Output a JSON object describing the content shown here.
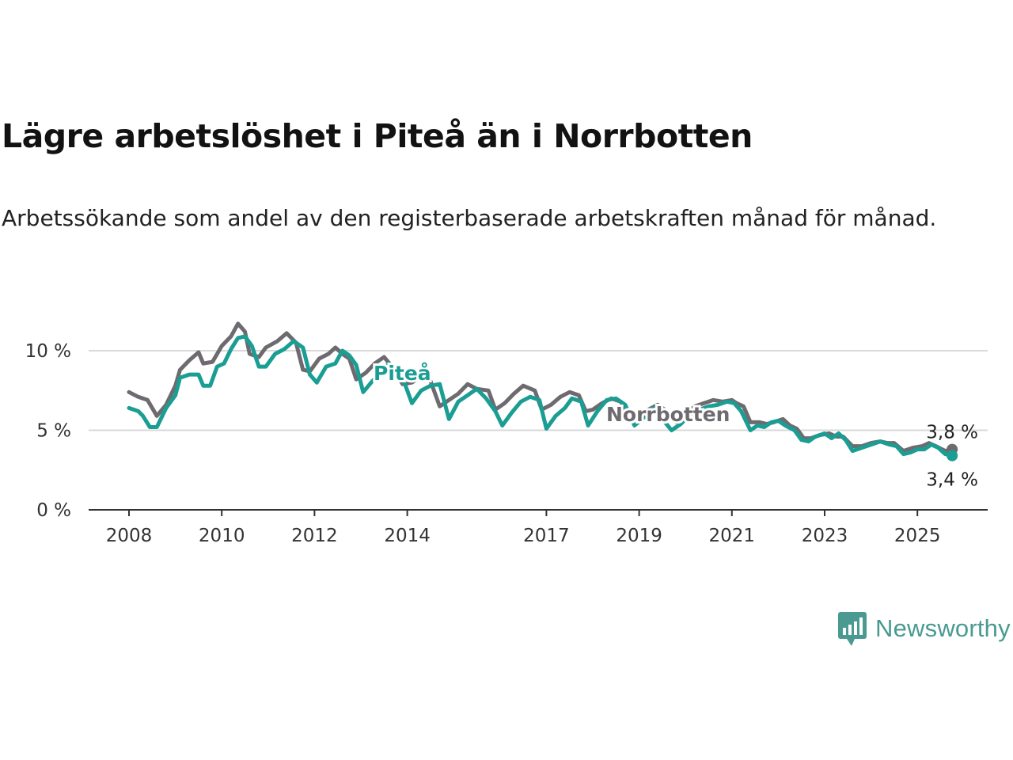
{
  "title": "Lägre arbetslöshet i Piteå än i Norrbotten",
  "subtitle": "Arbetssökande som andel av den registerbaserade arbetskraften månad för månad.",
  "brand": {
    "name": "Newsworthy",
    "icon": "newsworthy-chart-bubble-icon",
    "color": "#4a9a92"
  },
  "chart_data": {
    "type": "line",
    "x_unit": "year (decimal, monthly series)",
    "ylim": [
      0,
      12
    ],
    "xlim": [
      2007.65,
      2026.5
    ],
    "y_ticks": [
      0,
      5,
      10
    ],
    "y_tick_labels": [
      "0 %",
      "5 %",
      "10 %"
    ],
    "x_ticks": [
      2008,
      2010,
      2012,
      2014,
      2017,
      2019,
      2021,
      2023,
      2025
    ],
    "x_tick_labels": [
      "2008",
      "2010",
      "2012",
      "2014",
      "2017",
      "2019",
      "2021",
      "2023",
      "2025"
    ],
    "grid": true,
    "series": [
      {
        "name": "Norrbotten",
        "color": "#6e6b70",
        "end_label": "3,8 %",
        "points": [
          [
            2008.0,
            7.4
          ],
          [
            2008.2,
            7.1
          ],
          [
            2008.4,
            6.9
          ],
          [
            2008.6,
            5.9
          ],
          [
            2008.8,
            6.6
          ],
          [
            2009.0,
            7.8
          ],
          [
            2009.1,
            8.8
          ],
          [
            2009.3,
            9.4
          ],
          [
            2009.5,
            9.9
          ],
          [
            2009.6,
            9.2
          ],
          [
            2009.8,
            9.3
          ],
          [
            2010.0,
            10.3
          ],
          [
            2010.2,
            10.9
          ],
          [
            2010.35,
            11.7
          ],
          [
            2010.5,
            11.2
          ],
          [
            2010.6,
            9.8
          ],
          [
            2010.8,
            9.6
          ],
          [
            2010.95,
            10.2
          ],
          [
            2011.2,
            10.6
          ],
          [
            2011.4,
            11.1
          ],
          [
            2011.6,
            10.5
          ],
          [
            2011.75,
            8.8
          ],
          [
            2011.9,
            8.7
          ],
          [
            2012.1,
            9.5
          ],
          [
            2012.3,
            9.8
          ],
          [
            2012.45,
            10.2
          ],
          [
            2012.6,
            9.8
          ],
          [
            2012.75,
            9.5
          ],
          [
            2012.9,
            8.2
          ],
          [
            2013.1,
            8.6
          ],
          [
            2013.3,
            9.2
          ],
          [
            2013.5,
            9.6
          ],
          [
            2013.7,
            8.9
          ],
          [
            2013.9,
            7.9
          ],
          [
            2014.1,
            8.0
          ],
          [
            2014.3,
            8.4
          ],
          [
            2014.5,
            8.1
          ],
          [
            2014.7,
            6.5
          ],
          [
            2014.9,
            6.9
          ],
          [
            2015.1,
            7.3
          ],
          [
            2015.3,
            7.9
          ],
          [
            2015.5,
            7.6
          ],
          [
            2015.75,
            7.5
          ],
          [
            2015.9,
            6.3
          ],
          [
            2016.1,
            6.7
          ],
          [
            2016.3,
            7.3
          ],
          [
            2016.5,
            7.8
          ],
          [
            2016.75,
            7.5
          ],
          [
            2016.9,
            6.3
          ],
          [
            2017.1,
            6.6
          ],
          [
            2017.3,
            7.1
          ],
          [
            2017.5,
            7.4
          ],
          [
            2017.7,
            7.2
          ],
          [
            2017.85,
            6.2
          ],
          [
            2018.0,
            6.3
          ],
          [
            2018.2,
            6.7
          ],
          [
            2018.4,
            7.0
          ],
          [
            2018.6,
            6.8
          ],
          [
            2018.8,
            5.8
          ],
          [
            2019.0,
            5.9
          ],
          [
            2019.2,
            6.3
          ],
          [
            2019.4,
            6.6
          ],
          [
            2019.6,
            6.2
          ],
          [
            2019.8,
            5.5
          ],
          [
            2020.0,
            6.0
          ],
          [
            2020.2,
            6.5
          ],
          [
            2020.4,
            6.7
          ],
          [
            2020.6,
            6.9
          ],
          [
            2020.8,
            6.8
          ],
          [
            2021.0,
            6.9
          ],
          [
            2021.1,
            6.7
          ],
          [
            2021.25,
            6.5
          ],
          [
            2021.4,
            5.5
          ],
          [
            2021.6,
            5.5
          ],
          [
            2021.75,
            5.4
          ],
          [
            2021.9,
            5.5
          ],
          [
            2022.1,
            5.7
          ],
          [
            2022.25,
            5.3
          ],
          [
            2022.4,
            5.1
          ],
          [
            2022.55,
            4.5
          ],
          [
            2022.7,
            4.5
          ],
          [
            2022.9,
            4.7
          ],
          [
            2023.1,
            4.8
          ],
          [
            2023.25,
            4.6
          ],
          [
            2023.4,
            4.6
          ],
          [
            2023.6,
            4.0
          ],
          [
            2023.8,
            4.0
          ],
          [
            2024.0,
            4.2
          ],
          [
            2024.2,
            4.3
          ],
          [
            2024.35,
            4.2
          ],
          [
            2024.5,
            4.2
          ],
          [
            2024.7,
            3.7
          ],
          [
            2024.9,
            3.9
          ],
          [
            2025.1,
            4.0
          ],
          [
            2025.25,
            4.2
          ],
          [
            2025.4,
            4.0
          ],
          [
            2025.6,
            3.7
          ],
          [
            2025.75,
            3.8
          ]
        ]
      },
      {
        "name": "Piteå",
        "color": "#1a9e94",
        "end_label": "3,4 %",
        "points": [
          [
            2008.0,
            6.4
          ],
          [
            2008.2,
            6.2
          ],
          [
            2008.3,
            5.9
          ],
          [
            2008.45,
            5.2
          ],
          [
            2008.6,
            5.2
          ],
          [
            2008.8,
            6.4
          ],
          [
            2009.0,
            7.2
          ],
          [
            2009.1,
            8.3
          ],
          [
            2009.3,
            8.5
          ],
          [
            2009.5,
            8.5
          ],
          [
            2009.6,
            7.8
          ],
          [
            2009.75,
            7.8
          ],
          [
            2009.9,
            9.0
          ],
          [
            2010.05,
            9.2
          ],
          [
            2010.2,
            10.1
          ],
          [
            2010.35,
            10.8
          ],
          [
            2010.5,
            10.9
          ],
          [
            2010.65,
            10.3
          ],
          [
            2010.8,
            9.0
          ],
          [
            2010.95,
            9.0
          ],
          [
            2011.15,
            9.8
          ],
          [
            2011.35,
            10.1
          ],
          [
            2011.55,
            10.6
          ],
          [
            2011.75,
            10.2
          ],
          [
            2011.9,
            8.5
          ],
          [
            2012.05,
            8.0
          ],
          [
            2012.25,
            9.0
          ],
          [
            2012.45,
            9.2
          ],
          [
            2012.6,
            10.0
          ],
          [
            2012.75,
            9.7
          ],
          [
            2012.9,
            9.1
          ],
          [
            2013.05,
            7.4
          ],
          [
            2013.25,
            8.1
          ],
          [
            2013.4,
            8.5
          ],
          [
            2013.6,
            9.2
          ],
          [
            2013.75,
            9.0
          ],
          [
            2013.9,
            8.3
          ],
          [
            2014.1,
            6.7
          ],
          [
            2014.3,
            7.5
          ],
          [
            2014.5,
            7.8
          ],
          [
            2014.7,
            7.9
          ],
          [
            2014.9,
            5.7
          ],
          [
            2015.1,
            6.8
          ],
          [
            2015.3,
            7.2
          ],
          [
            2015.5,
            7.6
          ],
          [
            2015.7,
            7.0
          ],
          [
            2015.9,
            6.2
          ],
          [
            2016.05,
            5.3
          ],
          [
            2016.25,
            6.1
          ],
          [
            2016.45,
            6.8
          ],
          [
            2016.65,
            7.1
          ],
          [
            2016.85,
            6.9
          ],
          [
            2017.0,
            5.1
          ],
          [
            2017.2,
            5.9
          ],
          [
            2017.4,
            6.4
          ],
          [
            2017.55,
            7.0
          ],
          [
            2017.75,
            6.8
          ],
          [
            2017.9,
            5.3
          ],
          [
            2018.1,
            6.2
          ],
          [
            2018.3,
            6.9
          ],
          [
            2018.5,
            7.0
          ],
          [
            2018.7,
            6.6
          ],
          [
            2018.9,
            5.3
          ],
          [
            2019.1,
            5.8
          ],
          [
            2019.3,
            6.4
          ],
          [
            2019.5,
            5.7
          ],
          [
            2019.7,
            5.0
          ],
          [
            2019.9,
            5.4
          ],
          [
            2020.1,
            6.0
          ],
          [
            2020.3,
            6.3
          ],
          [
            2020.5,
            6.5
          ],
          [
            2020.7,
            6.6
          ],
          [
            2020.9,
            6.8
          ],
          [
            2021.05,
            6.7
          ],
          [
            2021.2,
            6.2
          ],
          [
            2021.4,
            5.0
          ],
          [
            2021.55,
            5.3
          ],
          [
            2021.7,
            5.2
          ],
          [
            2021.85,
            5.5
          ],
          [
            2022.0,
            5.6
          ],
          [
            2022.15,
            5.3
          ],
          [
            2022.35,
            5.0
          ],
          [
            2022.5,
            4.4
          ],
          [
            2022.65,
            4.3
          ],
          [
            2022.8,
            4.6
          ],
          [
            2023.0,
            4.8
          ],
          [
            2023.15,
            4.5
          ],
          [
            2023.3,
            4.8
          ],
          [
            2023.45,
            4.4
          ],
          [
            2023.6,
            3.7
          ],
          [
            2023.8,
            3.9
          ],
          [
            2024.0,
            4.1
          ],
          [
            2024.2,
            4.3
          ],
          [
            2024.4,
            4.1
          ],
          [
            2024.55,
            4.0
          ],
          [
            2024.7,
            3.5
          ],
          [
            2024.85,
            3.6
          ],
          [
            2025.0,
            3.8
          ],
          [
            2025.15,
            3.8
          ],
          [
            2025.3,
            4.1
          ],
          [
            2025.45,
            3.9
          ],
          [
            2025.6,
            3.5
          ],
          [
            2025.75,
            3.4
          ]
        ]
      }
    ]
  }
}
